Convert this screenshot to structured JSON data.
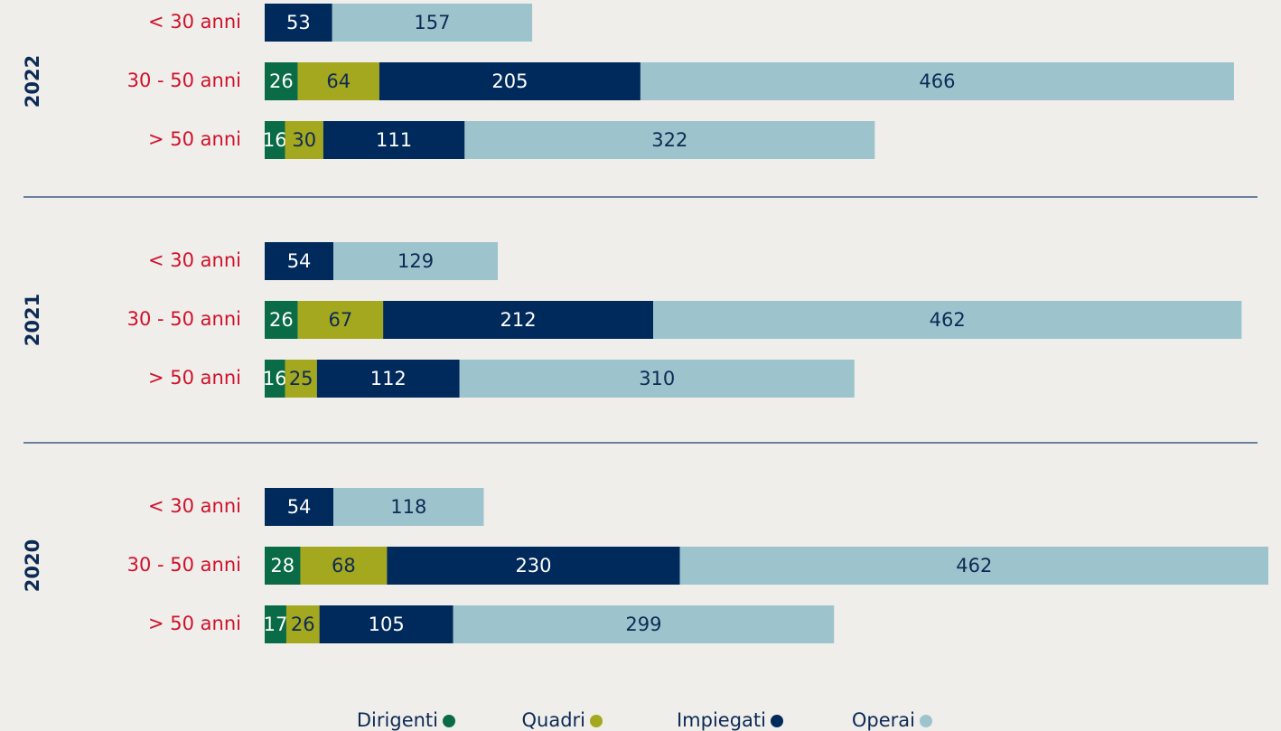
{
  "chart_data": {
    "type": "bar",
    "orientation": "horizontal",
    "stacked": true,
    "groups": [
      "2022",
      "2021",
      "2020"
    ],
    "categories": [
      "< 30 anni",
      "30 - 50 anni",
      "> 50 anni"
    ],
    "series": [
      {
        "name": "Dirigenti",
        "color": "#0a6b47",
        "label_color": "#ffffff",
        "values": [
          [
            null,
            26,
            16
          ],
          [
            null,
            26,
            16
          ],
          [
            null,
            28,
            17
          ]
        ]
      },
      {
        "name": "Quadri",
        "color": "#a3a81e",
        "label_color": "#0d2a55",
        "values": [
          [
            null,
            64,
            30
          ],
          [
            null,
            67,
            25
          ],
          [
            null,
            68,
            26
          ]
        ]
      },
      {
        "name": "Impiegati",
        "color": "#002a5c",
        "label_color": "#ffffff",
        "values": [
          [
            53,
            205,
            111
          ],
          [
            54,
            212,
            112
          ],
          [
            54,
            230,
            105
          ]
        ]
      },
      {
        "name": "Operai",
        "color": "#9dc4cd",
        "label_color": "#0d2a55",
        "values": [
          [
            157,
            466,
            322
          ],
          [
            129,
            462,
            310
          ],
          [
            118,
            462,
            299
          ]
        ]
      }
    ]
  }
}
